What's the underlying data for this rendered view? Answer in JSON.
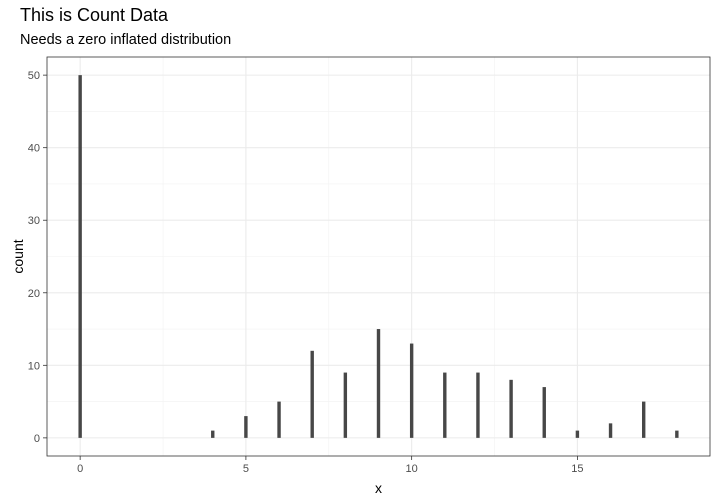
{
  "chart_data": {
    "type": "bar",
    "title": "This is Count Data",
    "subtitle": "Needs a zero inflated distribution",
    "xlabel": "x",
    "ylabel": "count",
    "x": [
      0,
      4,
      5,
      6,
      7,
      8,
      9,
      10,
      11,
      12,
      13,
      14,
      15,
      16,
      17,
      18
    ],
    "values": [
      50,
      1,
      3,
      5,
      12,
      9,
      15,
      13,
      9,
      9,
      8,
      7,
      1,
      2,
      5,
      1
    ],
    "xlim": [
      -1,
      19
    ],
    "ylim": [
      -2.5,
      52.5
    ],
    "x_ticks": [
      0,
      5,
      10,
      15
    ],
    "y_ticks": [
      0,
      10,
      20,
      30,
      40,
      50
    ],
    "grid": true,
    "bar_color": "#474747",
    "theme": "bw"
  }
}
